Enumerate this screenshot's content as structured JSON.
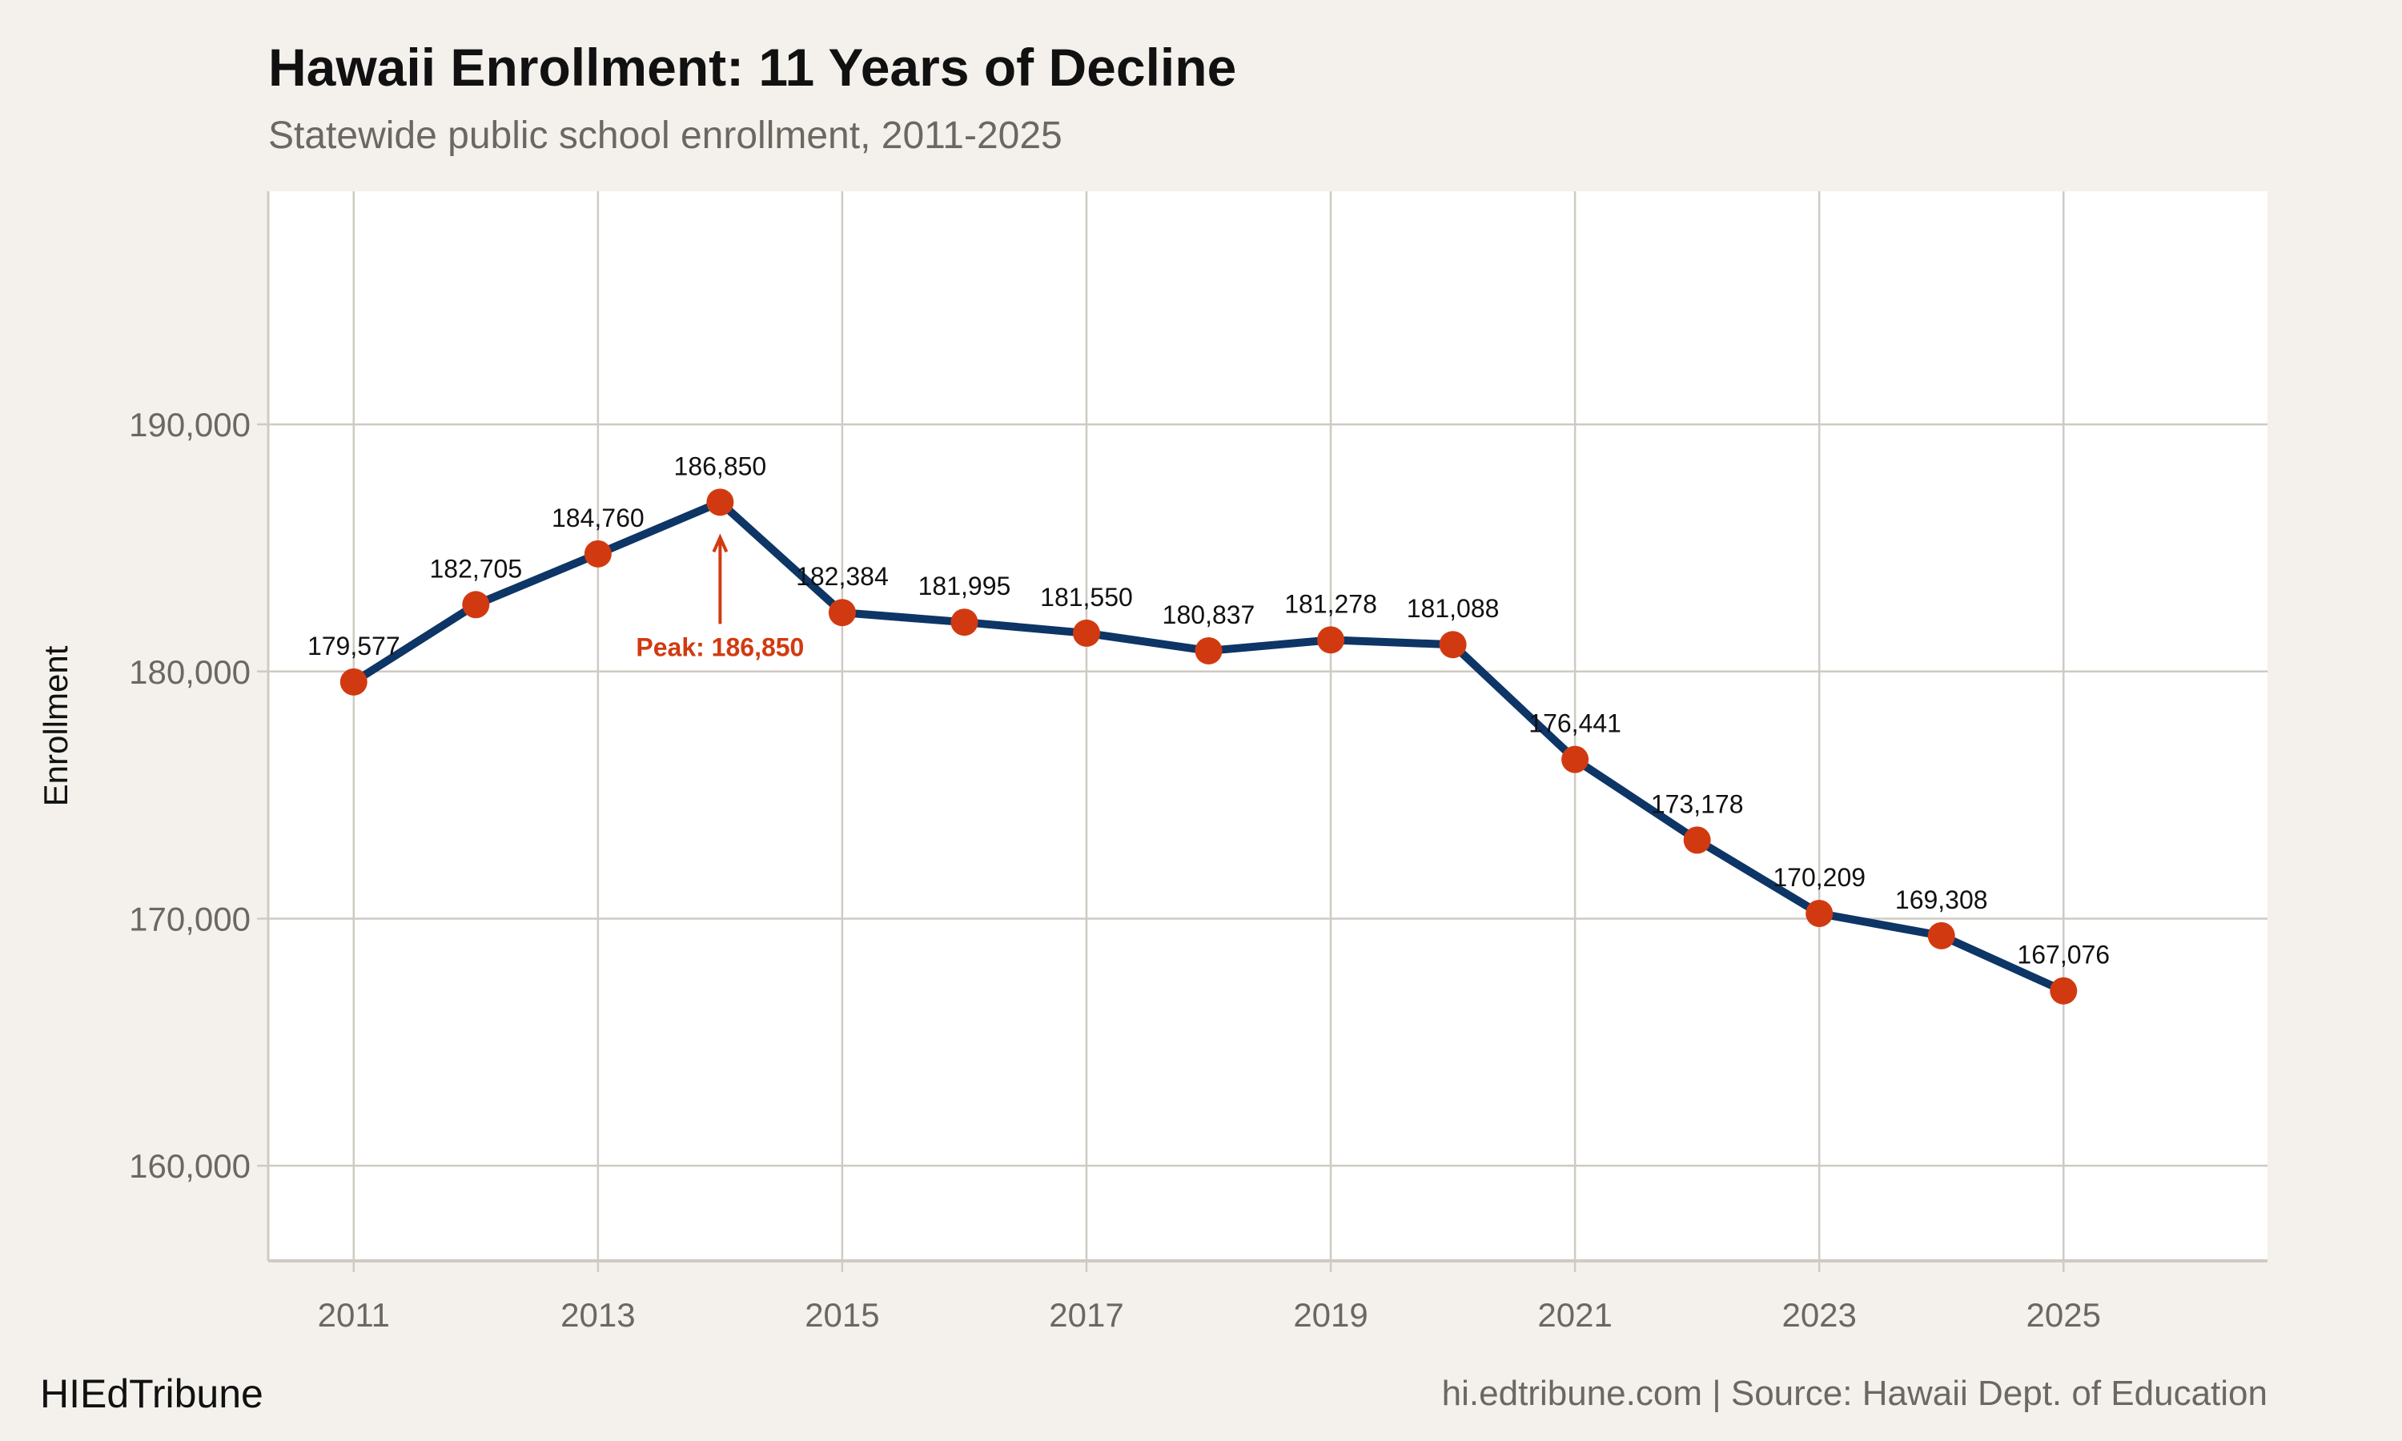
{
  "chart_data": {
    "type": "line",
    "title": "Hawaii Enrollment: 11 Years of Decline",
    "subtitle": "Statewide public school enrollment, 2011-2025",
    "xlabel": "",
    "ylabel": "Enrollment",
    "x": [
      2011,
      2012,
      2013,
      2014,
      2015,
      2016,
      2017,
      2018,
      2019,
      2020,
      2021,
      2022,
      2023,
      2024,
      2025
    ],
    "values": [
      179577,
      182705,
      184760,
      186850,
      182384,
      181995,
      181550,
      180837,
      181278,
      181088,
      176441,
      173178,
      170209,
      169308,
      167076
    ],
    "data_labels": [
      "179,577",
      "182,705",
      "184,760",
      "186,850",
      "182,384",
      "181,995",
      "181,550",
      "180,837",
      "181,278",
      "181,088",
      "176,441",
      "173,178",
      "170,209",
      "169,308",
      "167,076"
    ],
    "x_ticks": [
      2011,
      2013,
      2015,
      2017,
      2019,
      2021,
      2023,
      2025
    ],
    "y_ticks": [
      160000,
      170000,
      180000,
      190000
    ],
    "y_tick_labels": [
      "160,000",
      "170,000",
      "180,000",
      "190,000"
    ],
    "xlim": [
      2010.3,
      2026.67
    ],
    "ylim": [
      156150,
      199430
    ],
    "grid": true,
    "annotation": {
      "text": "Peak: 186,850",
      "x": 2014,
      "y": 186850
    },
    "colors": {
      "line": "#0d3566",
      "points": "#d13a10",
      "annotation": "#d13a10",
      "grid": "#cfcac2",
      "panel": "#ffffff",
      "background": "#f4f1ec"
    }
  },
  "footer": {
    "brand": "HIEdTribune",
    "source": "hi.edtribune.com | Source: Hawaii Dept. of Education"
  }
}
